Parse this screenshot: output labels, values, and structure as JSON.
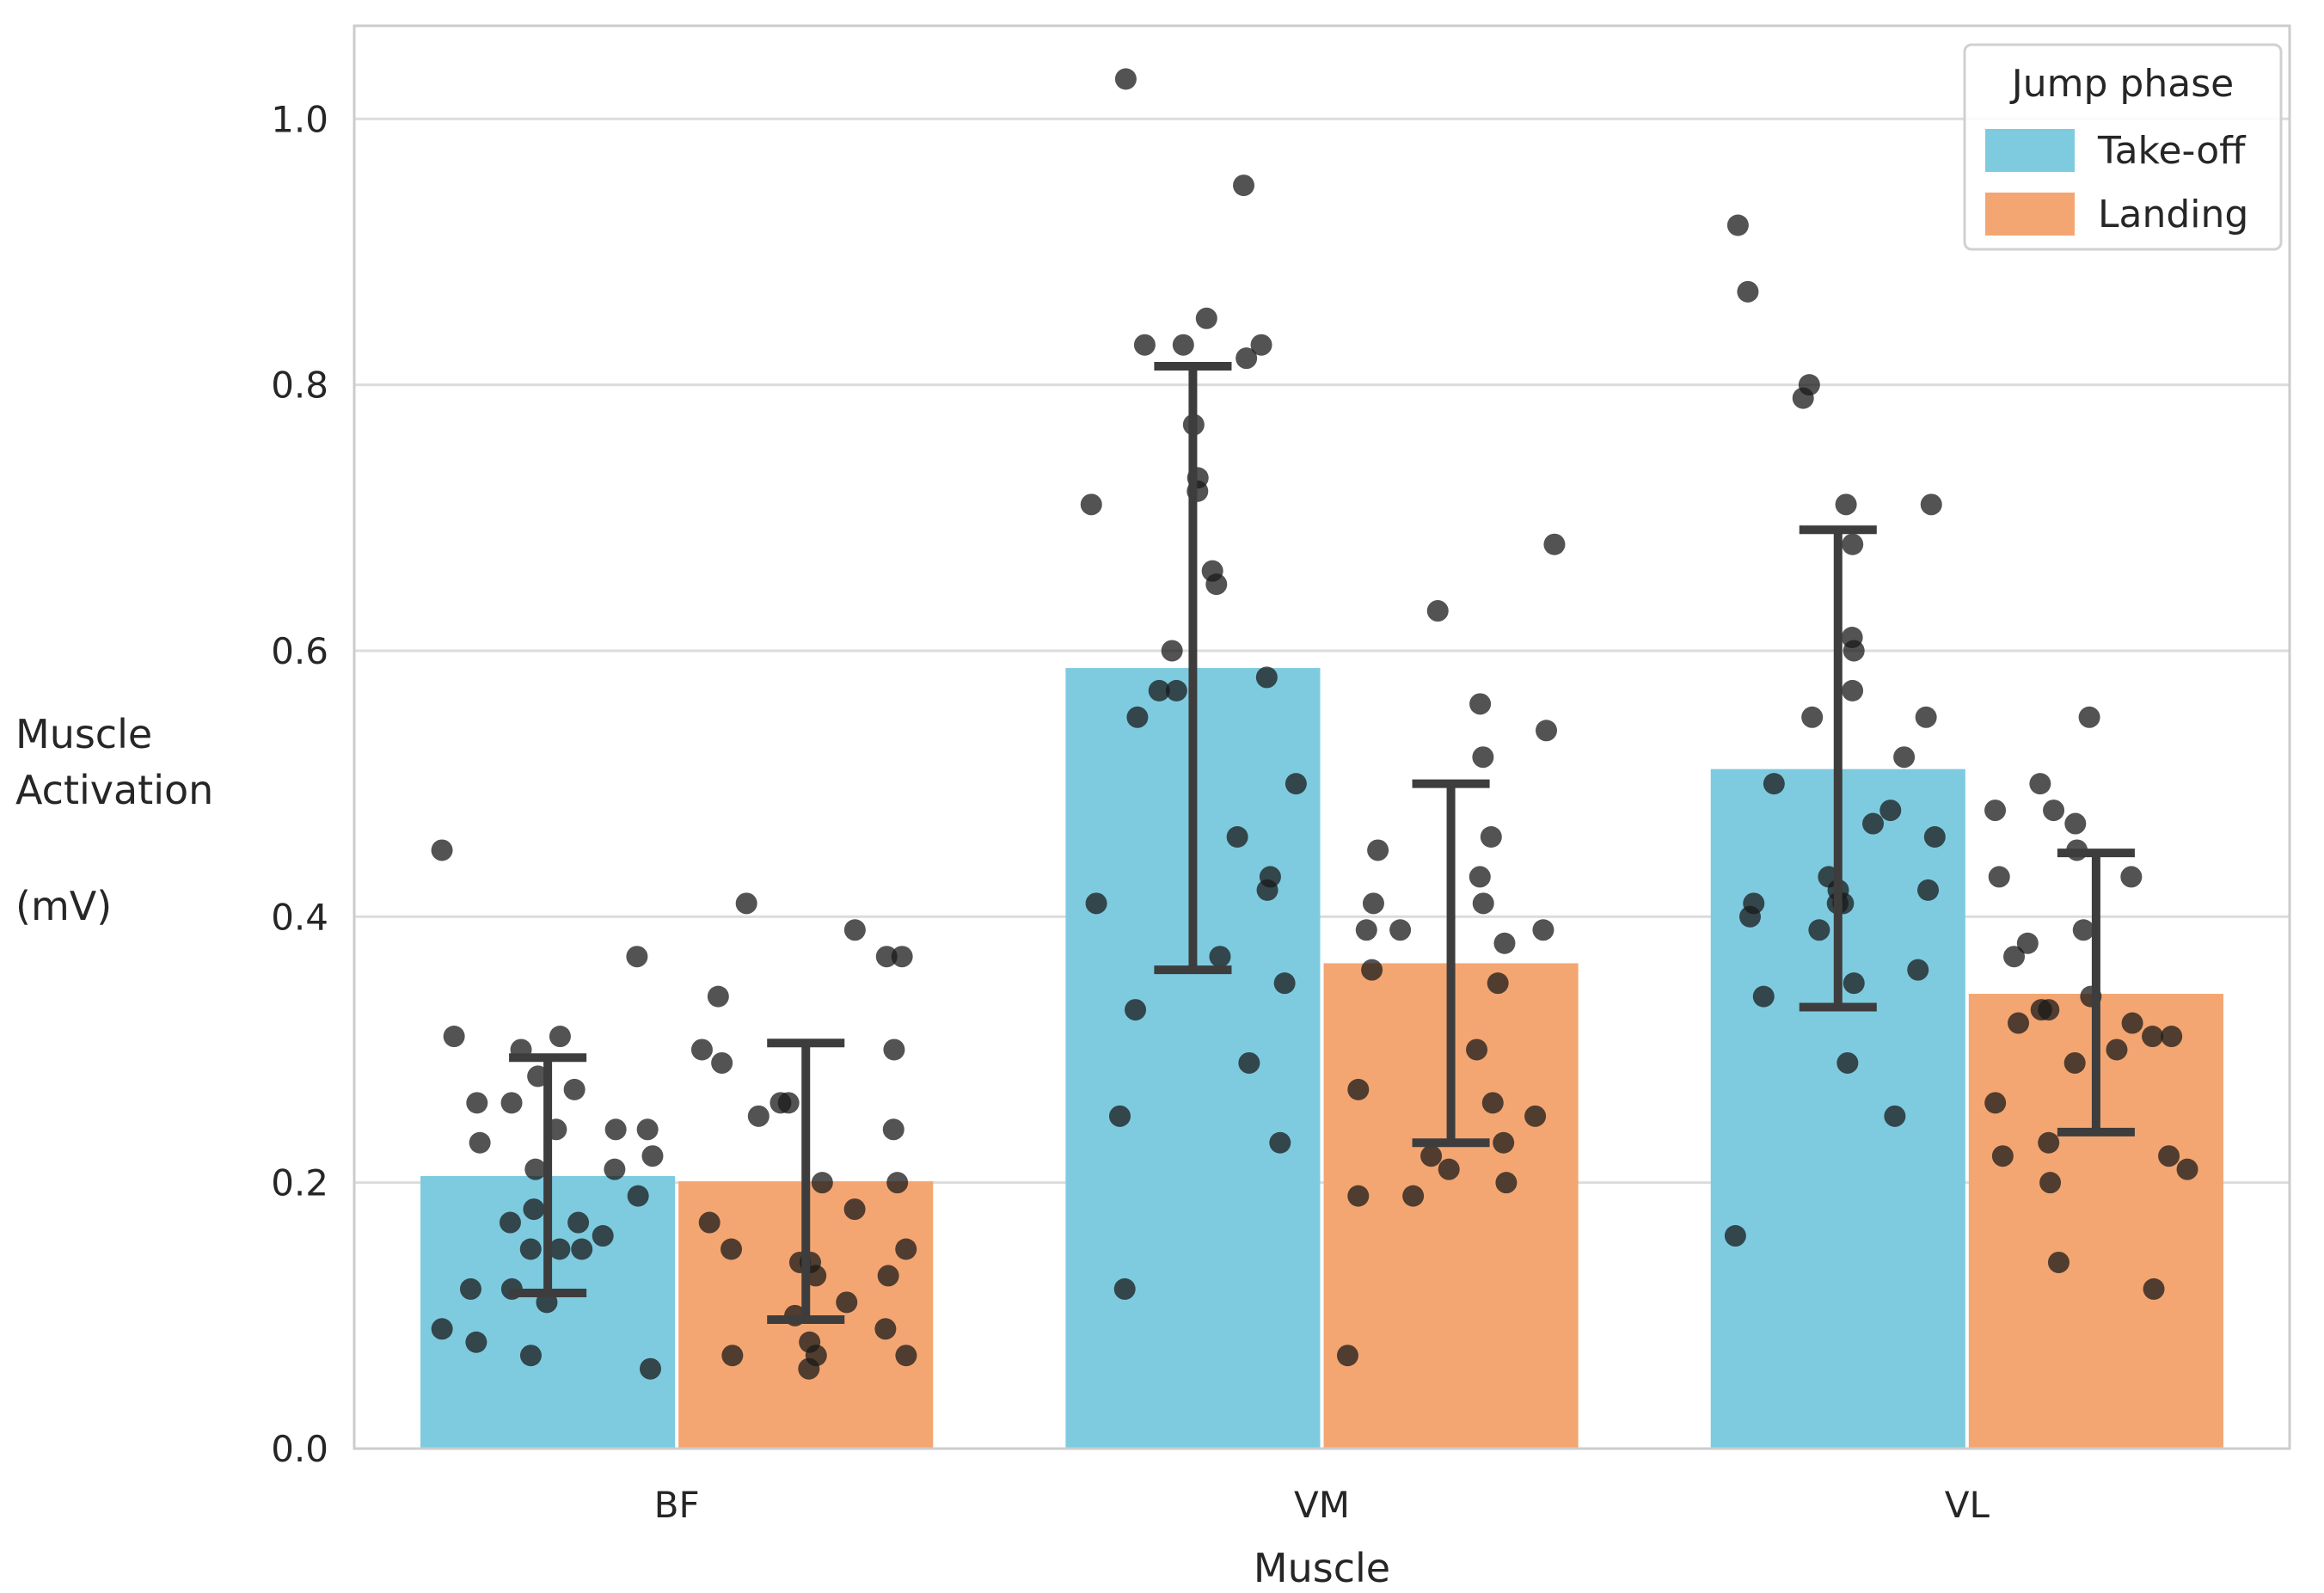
{
  "chart_data": {
    "type": "bar",
    "xlabel": "Muscle",
    "ylabel_lines": [
      "Muscle",
      "Activation",
      "(mV)"
    ],
    "categories": [
      "BF",
      "VM",
      "VL"
    ],
    "ylim": [
      0,
      1.07
    ],
    "yticks": [
      0.0,
      0.2,
      0.4,
      0.6,
      0.8,
      1.0
    ],
    "ytick_labels": [
      "0.0",
      "0.2",
      "0.4",
      "0.6",
      "0.8",
      "1.0"
    ],
    "grid": "horizontal",
    "legend": {
      "title": "Jump phase",
      "placement": "top-right"
    },
    "series": [
      {
        "name": "Take-off",
        "color": "#7ecbe0",
        "values": [
          0.205,
          0.587,
          0.511
        ],
        "error_low": [
          0.117,
          0.36,
          0.332
        ],
        "error_high": [
          0.294,
          0.814,
          0.691
        ],
        "points": [
          [
            0.45,
            0.37,
            0.31,
            0.31,
            0.3,
            0.28,
            0.27,
            0.26,
            0.26,
            0.24,
            0.24,
            0.24,
            0.23,
            0.22,
            0.21,
            0.21,
            0.19,
            0.18,
            0.17,
            0.17,
            0.16,
            0.15,
            0.15,
            0.15,
            0.12,
            0.12,
            0.11,
            0.09,
            0.08,
            0.07,
            0.06
          ],
          [
            1.03,
            0.95,
            0.85,
            0.83,
            0.83,
            0.83,
            0.82,
            0.77,
            0.73,
            0.72,
            0.71,
            0.66,
            0.65,
            0.6,
            0.58,
            0.57,
            0.57,
            0.55,
            0.5,
            0.46,
            0.43,
            0.42,
            0.41,
            0.37,
            0.35,
            0.33,
            0.29,
            0.25,
            0.23,
            0.12
          ],
          [
            0.92,
            0.87,
            0.8,
            0.79,
            0.71,
            0.71,
            0.68,
            0.61,
            0.6,
            0.57,
            0.55,
            0.55,
            0.52,
            0.5,
            0.48,
            0.47,
            0.46,
            0.43,
            0.42,
            0.42,
            0.41,
            0.41,
            0.41,
            0.4,
            0.39,
            0.36,
            0.35,
            0.34,
            0.29,
            0.25,
            0.16
          ]
        ]
      },
      {
        "name": "Landing",
        "color": "#f4a672",
        "values": [
          0.201,
          0.365,
          0.342
        ],
        "error_low": [
          0.097,
          0.23,
          0.238
        ],
        "error_high": [
          0.305,
          0.5,
          0.448
        ],
        "points": [
          [
            0.41,
            0.39,
            0.37,
            0.37,
            0.34,
            0.3,
            0.3,
            0.29,
            0.26,
            0.26,
            0.25,
            0.24,
            0.2,
            0.2,
            0.18,
            0.17,
            0.15,
            0.15,
            0.14,
            0.14,
            0.13,
            0.13,
            0.11,
            0.1,
            0.09,
            0.08,
            0.07,
            0.07,
            0.07,
            0.06
          ],
          [
            0.68,
            0.63,
            0.56,
            0.54,
            0.52,
            0.46,
            0.45,
            0.43,
            0.41,
            0.41,
            0.39,
            0.39,
            0.39,
            0.38,
            0.36,
            0.35,
            0.3,
            0.27,
            0.26,
            0.25,
            0.23,
            0.22,
            0.21,
            0.2,
            0.19,
            0.19,
            0.07
          ],
          [
            0.55,
            0.5,
            0.48,
            0.48,
            0.47,
            0.45,
            0.43,
            0.43,
            0.39,
            0.38,
            0.37,
            0.34,
            0.33,
            0.33,
            0.32,
            0.32,
            0.31,
            0.31,
            0.3,
            0.29,
            0.26,
            0.23,
            0.22,
            0.22,
            0.21,
            0.2,
            0.14,
            0.12
          ]
        ]
      }
    ]
  }
}
